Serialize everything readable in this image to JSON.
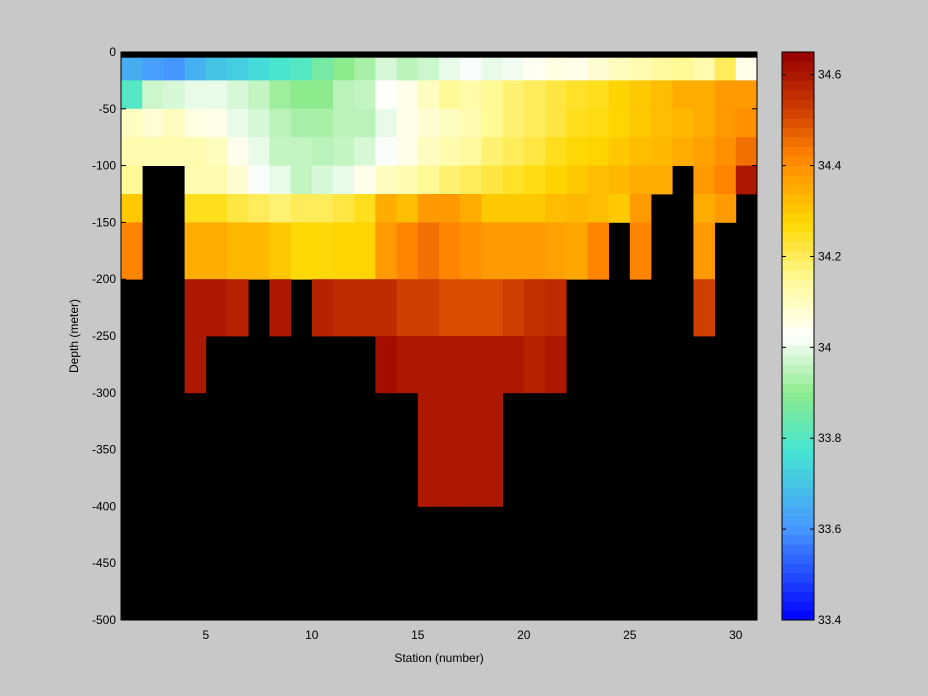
{
  "chart_data": {
    "type": "heatmap",
    "title": "",
    "xlabel": "Station (number)",
    "ylabel": "Depth (meter)",
    "xlim": [
      1,
      31
    ],
    "ylim": [
      -500,
      0
    ],
    "x_ticks": [
      5,
      10,
      15,
      20,
      25,
      30
    ],
    "y_ticks": [
      0,
      -50,
      -100,
      -150,
      -200,
      -250,
      -300,
      -350,
      -400,
      -450,
      -500
    ],
    "stations": [
      1,
      2,
      3,
      4,
      5,
      6,
      7,
      8,
      9,
      10,
      11,
      12,
      13,
      14,
      15,
      16,
      17,
      18,
      19,
      20,
      21,
      22,
      23,
      24,
      25,
      26,
      27,
      28,
      29,
      30
    ],
    "depth_bins": [
      {
        "top": 0,
        "bottom": -5
      },
      {
        "top": -5,
        "bottom": -25
      },
      {
        "top": -25,
        "bottom": -50
      },
      {
        "top": -50,
        "bottom": -75
      },
      {
        "top": -75,
        "bottom": -100
      },
      {
        "top": -100,
        "bottom": -125
      },
      {
        "top": -125,
        "bottom": -150
      },
      {
        "top": -150,
        "bottom": -200
      },
      {
        "top": -200,
        "bottom": -250
      },
      {
        "top": -250,
        "bottom": -300
      },
      {
        "top": -300,
        "bottom": -400
      },
      {
        "top": -400,
        "bottom": -500
      }
    ],
    "values": [
      [
        null,
        null,
        null,
        null,
        null,
        null,
        null,
        null,
        null,
        null,
        null,
        null,
        null,
        null,
        null,
        null,
        null,
        null,
        null,
        null,
        null,
        null,
        null,
        null,
        null,
        null,
        null,
        null,
        null,
        null
      ],
      [
        33.65,
        33.62,
        33.6,
        33.66,
        33.7,
        33.72,
        33.75,
        33.78,
        33.8,
        33.86,
        33.9,
        33.93,
        33.98,
        33.95,
        33.97,
        34,
        34.02,
        34,
        34.01,
        34.04,
        34.06,
        34.05,
        34.08,
        34.1,
        34.12,
        34.14,
        34.15,
        34.12,
        34.2,
        34.05
      ],
      [
        33.8,
        33.97,
        33.98,
        34,
        34,
        33.98,
        33.96,
        33.92,
        33.9,
        33.9,
        33.95,
        33.96,
        34.03,
        34.05,
        34.1,
        34.15,
        34.13,
        34.15,
        34.18,
        34.2,
        34.22,
        34.24,
        34.25,
        34.28,
        34.3,
        34.32,
        34.35,
        34.35,
        34.38,
        34.38
      ],
      [
        34.1,
        34.08,
        34.1,
        34.06,
        34.05,
        34,
        33.98,
        33.95,
        33.93,
        33.93,
        33.95,
        33.95,
        34,
        34.05,
        34.08,
        34.1,
        34.12,
        34.15,
        34.18,
        34.2,
        34.22,
        34.25,
        34.26,
        34.28,
        34.3,
        34.32,
        34.33,
        34.35,
        34.38,
        34.4
      ],
      [
        34.12,
        34.12,
        34.12,
        34.12,
        34.1,
        34.05,
        34,
        33.96,
        33.96,
        33.95,
        33.96,
        33.98,
        34.02,
        34.05,
        34.1,
        34.12,
        34.14,
        34.18,
        34.2,
        34.22,
        34.25,
        34.27,
        34.28,
        34.3,
        34.32,
        34.33,
        34.35,
        34.37,
        34.4,
        34.45
      ],
      [
        34.15,
        null,
        null,
        34.12,
        34.12,
        34.08,
        34.02,
        34,
        33.96,
        33.98,
        34,
        34.05,
        34.1,
        34.12,
        34.15,
        34.18,
        34.2,
        34.22,
        34.24,
        34.26,
        34.28,
        34.3,
        34.32,
        34.33,
        34.35,
        34.35,
        null,
        34.38,
        34.42,
        34.6
      ],
      [
        34.3,
        null,
        null,
        34.25,
        34.25,
        34.22,
        34.2,
        34.18,
        34.2,
        34.2,
        34.22,
        34.25,
        34.35,
        34.32,
        34.38,
        34.38,
        34.35,
        34.3,
        34.3,
        34.3,
        34.32,
        34.33,
        34.32,
        34.3,
        34.38,
        null,
        null,
        34.35,
        34.38,
        null
      ],
      [
        34.42,
        null,
        null,
        34.35,
        34.35,
        34.33,
        34.33,
        34.3,
        34.27,
        34.27,
        34.28,
        34.28,
        34.38,
        34.42,
        34.45,
        34.42,
        34.4,
        34.38,
        34.38,
        34.38,
        34.37,
        34.36,
        34.42,
        null,
        34.42,
        null,
        null,
        34.38,
        null,
        null
      ],
      [
        null,
        null,
        null,
        34.6,
        34.6,
        34.58,
        null,
        34.6,
        null,
        34.58,
        34.56,
        34.56,
        34.56,
        34.52,
        34.52,
        34.5,
        34.5,
        34.5,
        34.52,
        34.55,
        34.56,
        null,
        null,
        null,
        null,
        null,
        null,
        34.52,
        null,
        null
      ],
      [
        null,
        null,
        null,
        34.6,
        null,
        null,
        null,
        null,
        null,
        null,
        null,
        null,
        34.62,
        34.6,
        34.6,
        34.6,
        34.6,
        34.6,
        34.6,
        34.58,
        34.6,
        null,
        null,
        null,
        null,
        null,
        null,
        null,
        null,
        null
      ],
      [
        null,
        null,
        null,
        null,
        null,
        null,
        null,
        null,
        null,
        null,
        null,
        null,
        null,
        null,
        34.6,
        34.6,
        34.6,
        34.6,
        null,
        null,
        null,
        null,
        null,
        null,
        null,
        null,
        null,
        null,
        null,
        null
      ],
      [
        null,
        null,
        null,
        null,
        null,
        null,
        null,
        null,
        null,
        null,
        null,
        null,
        null,
        null,
        null,
        null,
        null,
        null,
        null,
        null,
        null,
        null,
        null,
        null,
        null,
        null,
        null,
        null,
        null,
        null
      ]
    ],
    "colorbar": {
      "min": 33.4,
      "max": 34.65,
      "ticks": [
        33.4,
        33.6,
        33.8,
        34,
        34.2,
        34.4,
        34.6
      ],
      "tick_labels": [
        "33.4",
        "33.6",
        "33.8",
        "34",
        "34.2",
        "34.4",
        "34.6"
      ]
    },
    "nan_color": "#000000",
    "background_color": "#c8c8c8"
  }
}
